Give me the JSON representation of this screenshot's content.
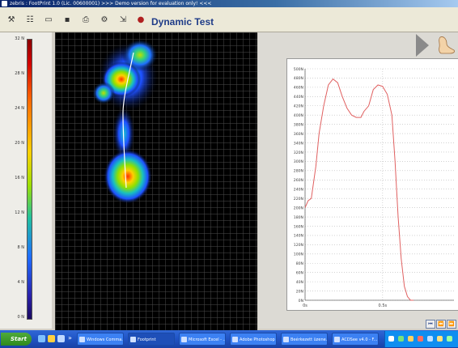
{
  "window": {
    "title": "zebris : FootPrint 1.0 (Lic. 00600001) >>> Demo version for evaluation only! <<<"
  },
  "toolbar": {
    "heading": "Dynamic Test",
    "icons": [
      "tool-icon",
      "list-icon",
      "page-icon",
      "save-icon",
      "print-icon",
      "settings-icon",
      "expand-icon",
      "record-icon"
    ]
  },
  "colorbar": {
    "labels": [
      "32 N",
      "28 N",
      "24 N",
      "20 N",
      "16 N",
      "12 N",
      "8 N",
      "4 N",
      "0 N"
    ]
  },
  "chart_data": {
    "type": "line",
    "title": "",
    "xlabel": "",
    "ylabel": "",
    "ylim": [
      0,
      500
    ],
    "xlim": [
      0,
      0.96
    ],
    "yticks": [
      "0N",
      "20N",
      "40N",
      "60N",
      "80N",
      "100N",
      "120N",
      "140N",
      "160N",
      "180N",
      "200N",
      "220N",
      "240N",
      "260N",
      "280N",
      "300N",
      "320N",
      "340N",
      "360N",
      "380N",
      "400N",
      "420N",
      "440N",
      "460N",
      "480N",
      "500N"
    ],
    "xticks": [
      "0s",
      "0.5s"
    ],
    "color": "#e06060",
    "series": [
      {
        "x": [
          0,
          0.02,
          0.04,
          0.07,
          0.09,
          0.12,
          0.15,
          0.18,
          0.21,
          0.24,
          0.27,
          0.3,
          0.33,
          0.36,
          0.38,
          0.41,
          0.44,
          0.47,
          0.5,
          0.53,
          0.56,
          0.58,
          0.6,
          0.62,
          0.64,
          0.66,
          0.68,
          0.7
        ],
        "y": [
          200,
          215,
          220,
          290,
          360,
          420,
          465,
          478,
          470,
          440,
          415,
          400,
          395,
          395,
          408,
          420,
          455,
          465,
          462,
          445,
          400,
          300,
          180,
          90,
          30,
          8,
          0,
          0
        ]
      }
    ]
  },
  "navigation": {
    "buttons": [
      "⏮",
      "⏪",
      "⏩"
    ]
  },
  "taskbar": {
    "start_label": "Start",
    "quick_launch_more": "»",
    "tasks": [
      {
        "label": "Windows Comma...",
        "active": false
      },
      {
        "label": "Footprint",
        "active": true
      },
      {
        "label": "Microsoft Excel - ...",
        "active": false
      },
      {
        "label": "Adobe Photoshop",
        "active": false
      },
      {
        "label": "Beérkezett üzene...",
        "active": false
      },
      {
        "label": "ACDSee v4.0 - F...",
        "active": false
      }
    ]
  }
}
